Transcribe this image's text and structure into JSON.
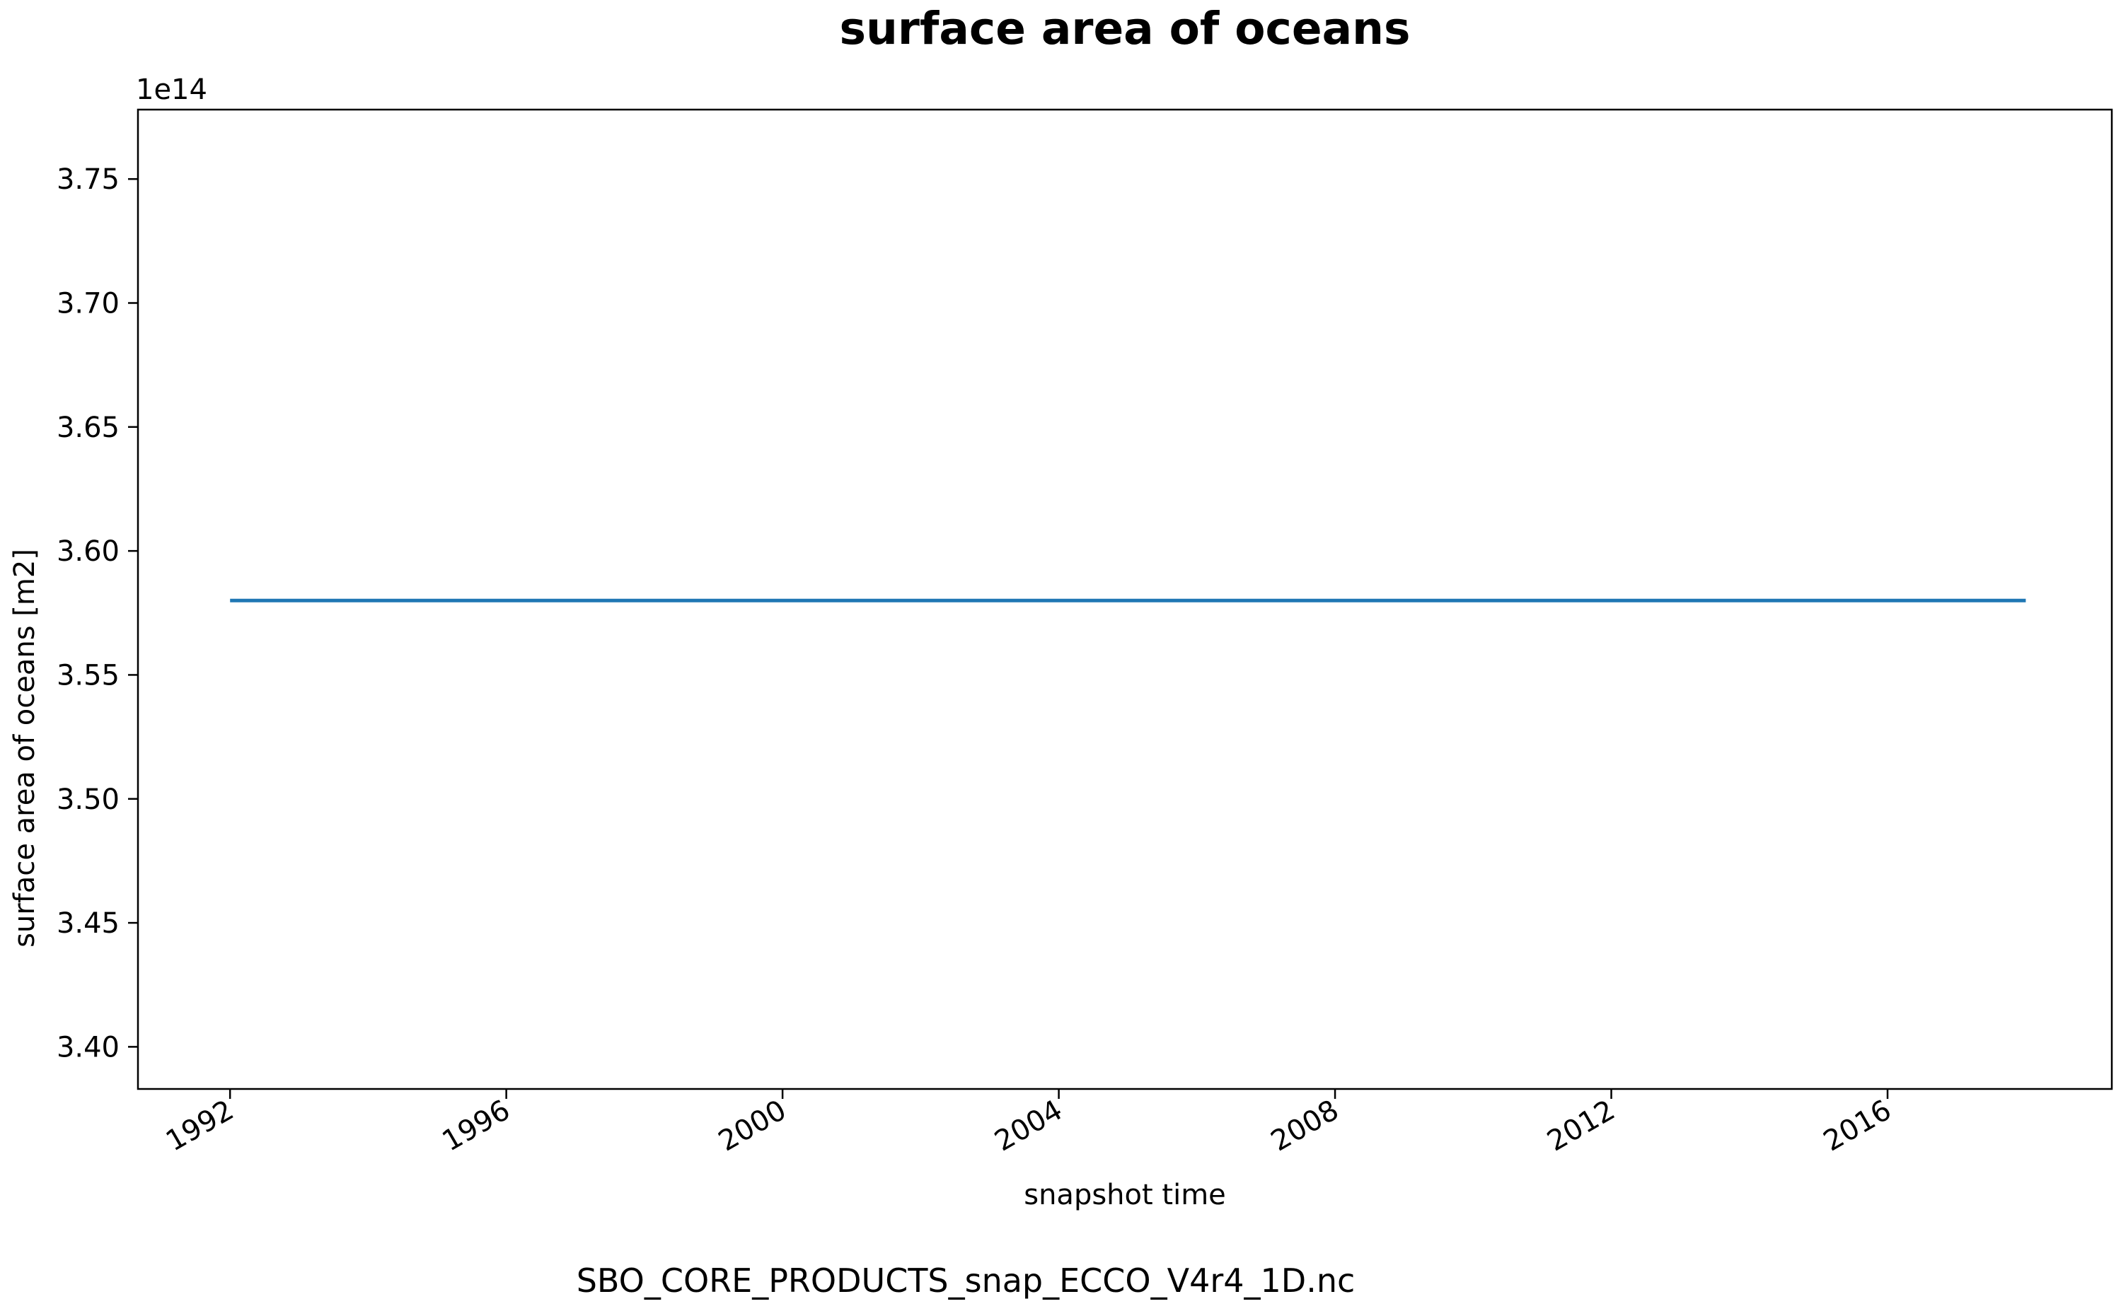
{
  "chart_data": {
    "type": "line",
    "title": "surface area of oceans",
    "xlabel": "snapshot time",
    "ylabel": "surface area of oceans [m2]",
    "y_offset_label": "1e14",
    "x_ticks": [
      "1992",
      "1996",
      "2000",
      "2004",
      "2008",
      "2012",
      "2016"
    ],
    "y_ticks": [
      "3.40",
      "3.45",
      "3.50",
      "3.55",
      "3.60",
      "3.65",
      "3.70",
      "3.75"
    ],
    "xlim": [
      "1990-09-01",
      "2019-04-01"
    ],
    "ylim": [
      3.383,
      3.778
    ],
    "y_scale": 100000000000000.0,
    "grid": false,
    "series": [
      {
        "color": "#1f77b4",
        "x": [
          "1992-01-01",
          "2018-01-01"
        ],
        "y": [
          3.58,
          3.58
        ]
      }
    ]
  },
  "footer": {
    "filename": "SBO_CORE_PRODUCTS_snap_ECCO_V4r4_1D.nc"
  }
}
